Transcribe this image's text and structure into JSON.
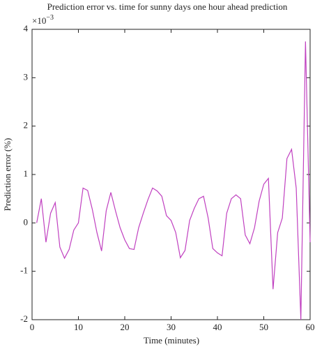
{
  "chart_data": {
    "type": "line",
    "title": "Prediction error vs. time for sunny days one hour ahead prediction",
    "x_label": "Time (minutes)",
    "y_label": "Prediction error (%)",
    "y_scale": {
      "base": "×10",
      "exponent": "−3"
    },
    "x": [
      1,
      2,
      3,
      4,
      5,
      6,
      7,
      8,
      9,
      10,
      11,
      12,
      13,
      14,
      15,
      16,
      17,
      18,
      19,
      20,
      21,
      22,
      23,
      24,
      25,
      26,
      27,
      28,
      29,
      30,
      31,
      32,
      33,
      34,
      35,
      36,
      37,
      38,
      39,
      40,
      41,
      42,
      43,
      44,
      45,
      46,
      47,
      48,
      49,
      50,
      51,
      52,
      53,
      54,
      55,
      56,
      57,
      58,
      59,
      60
    ],
    "series": [
      {
        "name": "Prediction error",
        "color": "#c040c0",
        "values": [
          0,
          0.5,
          -0.4,
          0.2,
          0.42,
          -0.5,
          -0.73,
          -0.55,
          -0.15,
          0,
          0.72,
          0.67,
          0.28,
          -0.2,
          -0.58,
          0.25,
          0.63,
          0.25,
          -0.1,
          -0.35,
          -0.53,
          -0.55,
          -0.1,
          0.2,
          0.48,
          0.72,
          0.66,
          0.55,
          0.15,
          0.05,
          -0.2,
          -0.72,
          -0.57,
          0.05,
          0.3,
          0.5,
          0.55,
          0.1,
          -0.53,
          -0.62,
          -0.68,
          0.2,
          0.5,
          0.58,
          0.5,
          -0.25,
          -0.43,
          -0.1,
          0.45,
          0.8,
          0.92,
          -1.37,
          -0.2,
          0.1,
          1.33,
          1.52,
          0.72,
          -2,
          3.75,
          -0.4
        ]
      }
    ],
    "xlim": [
      0,
      60
    ],
    "xticks": [
      0,
      10,
      20,
      30,
      40,
      50,
      60
    ],
    "ylim": [
      -2,
      4
    ],
    "yticks": [
      -2,
      -1,
      0,
      1,
      2,
      3,
      4
    ]
  }
}
